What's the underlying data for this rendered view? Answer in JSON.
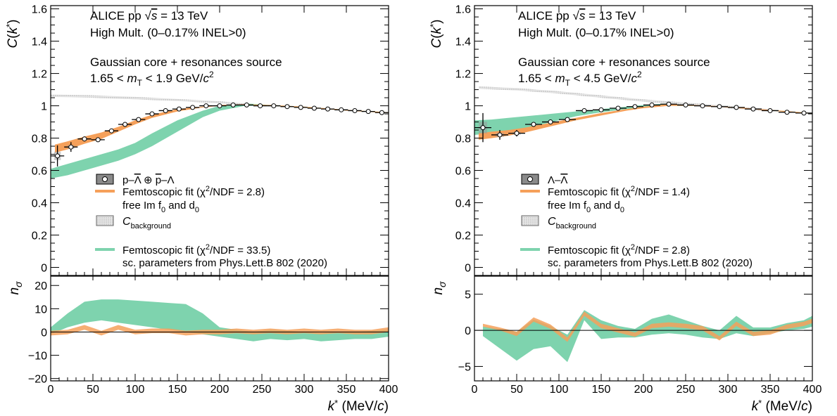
{
  "chart_data": [
    {
      "type": "line",
      "panel": "left",
      "title_lines": [
        "ALICE pp √s = 13 TeV",
        "High Mult. (0–0.17% INEL>0)",
        "Gaussian core + resonances source",
        "1.65 < mT < 1.9 GeV/c2"
      ],
      "xlabel": "k* (MeV/c)",
      "ylabel": "C(k*)",
      "ratio_ylabel": "nσ",
      "xlim": [
        0,
        400
      ],
      "ylim": [
        -0.05,
        1.62
      ],
      "ratio_ylim": [
        -21,
        24
      ],
      "xticks": [
        0,
        50,
        100,
        150,
        200,
        250,
        300,
        350,
        400
      ],
      "yticks": [
        0,
        0.2,
        0.4,
        0.6,
        0.8,
        1,
        1.2,
        1.4,
        1.6
      ],
      "ratio_yticks": [
        -20,
        -10,
        0,
        10,
        20
      ],
      "legend_placement": "center-left",
      "legend": {
        "data": "p–Λ̄ ⊕ p̄–Λ",
        "fit1_line1": "Femtoscopic fit (χ²/NDF = 2.8)",
        "fit1_line2": "free Im f0 and d0",
        "background": "Cbackground",
        "fit2_line1": "Femtoscopic fit (χ²/NDF = 33.5)",
        "fit2_line2": "sc. parameters from Phys.Lett.B 802 (2020)"
      },
      "data_points": {
        "x": [
          8,
          24,
          40,
          56,
          72,
          88,
          104,
          120,
          136,
          152,
          168,
          184,
          200,
          216,
          232,
          248,
          264,
          280,
          296,
          312,
          328,
          344,
          360,
          376,
          392
        ],
        "y": [
          0.69,
          0.745,
          0.795,
          0.79,
          0.845,
          0.885,
          0.915,
          0.95,
          0.97,
          0.98,
          0.99,
          1.0,
          1.0,
          1.005,
          1.005,
          1.0,
          1.0,
          0.995,
          0.99,
          0.985,
          0.98,
          0.975,
          0.97,
          0.965,
          0.958
        ],
        "yerr": [
          0.065,
          0.03,
          0.015,
          0.012,
          0.01,
          0.01,
          0.01,
          0.008,
          0.008,
          0.007,
          0.007,
          0.006,
          0.006,
          0.006,
          0.006,
          0.006,
          0.006,
          0.006,
          0.006,
          0.006,
          0.006,
          0.006,
          0.006,
          0.006,
          0.006
        ]
      },
      "fit1_band": {
        "x": [
          5,
          20,
          40,
          60,
          80,
          100,
          120,
          150,
          180,
          200,
          230,
          260,
          300,
          350,
          400
        ],
        "lower": [
          0.71,
          0.73,
          0.765,
          0.795,
          0.84,
          0.885,
          0.925,
          0.965,
          0.99,
          1.0,
          1.005,
          1.0,
          0.99,
          0.97,
          0.955
        ],
        "upper": [
          0.76,
          0.78,
          0.81,
          0.835,
          0.87,
          0.91,
          0.945,
          0.98,
          0.995,
          1.005,
          1.01,
          1.005,
          0.995,
          0.975,
          0.96
        ]
      },
      "fit2_band": {
        "x": [
          0,
          20,
          40,
          60,
          80,
          100,
          120,
          150,
          180,
          200,
          230,
          260,
          300,
          350,
          400
        ],
        "lower": [
          0.55,
          0.57,
          0.6,
          0.63,
          0.66,
          0.7,
          0.75,
          0.84,
          0.93,
          0.97,
          1.0,
          1.0,
          0.99,
          0.97,
          0.955
        ],
        "upper": [
          0.61,
          0.64,
          0.67,
          0.7,
          0.73,
          0.77,
          0.83,
          0.91,
          0.97,
          1.0,
          1.015,
          1.005,
          0.995,
          0.975,
          0.96
        ]
      },
      "background_band": {
        "x": [
          0,
          50,
          100,
          150,
          200,
          230
        ],
        "lower": [
          1.055,
          1.05,
          1.04,
          1.03,
          1.015,
          1.005
        ],
        "upper": [
          1.07,
          1.065,
          1.055,
          1.042,
          1.028,
          1.015
        ]
      },
      "ratio_fit1": {
        "x": [
          0,
          20,
          40,
          60,
          80,
          100,
          120,
          140,
          160,
          180,
          200,
          220,
          240,
          260,
          280,
          300,
          320,
          340,
          360,
          380,
          400
        ],
        "lower": [
          -1.5,
          -1,
          1,
          -1.5,
          1,
          -1,
          -0.5,
          -0.5,
          -1.5,
          -1,
          -1,
          -0.5,
          -1,
          -0.5,
          -1,
          -0.5,
          -1,
          -0.5,
          -1,
          -1,
          0
        ],
        "upper": [
          0.5,
          1,
          3,
          0.5,
          3,
          1,
          1.5,
          1.5,
          0.5,
          1,
          1,
          1.5,
          1,
          1.5,
          1,
          1.5,
          1,
          1.5,
          1,
          1,
          2
        ]
      },
      "ratio_fit2": {
        "x": [
          0,
          20,
          40,
          60,
          80,
          100,
          120,
          140,
          160,
          180,
          200,
          220,
          240,
          260,
          280,
          300,
          320,
          340,
          360,
          380,
          400
        ],
        "lower": [
          -1,
          2,
          4,
          5,
          4,
          3,
          2,
          1,
          0,
          -1,
          -2,
          -3,
          -4,
          -3,
          -3.5,
          -3,
          -4,
          -3.5,
          -3,
          -3,
          -2
        ],
        "upper": [
          2,
          8,
          13,
          14,
          14,
          13.5,
          13,
          12.5,
          12,
          8,
          2,
          1,
          0,
          1,
          0.5,
          0,
          -0.5,
          0,
          0,
          0.5,
          1
        ]
      }
    },
    {
      "type": "line",
      "panel": "right",
      "title_lines": [
        "ALICE pp √s = 13 TeV",
        "High Mult. (0–0.17% INEL>0)",
        "Gaussian core + resonances source",
        "1.65 < mT < 4.5 GeV/c2"
      ],
      "xlabel": "k* (MeV/c)",
      "ylabel": "C(k*)",
      "ratio_ylabel": "nσ",
      "xlim": [
        0,
        400
      ],
      "ylim": [
        -0.05,
        1.62
      ],
      "ratio_ylim": [
        -7,
        7.5
      ],
      "xticks": [
        0,
        50,
        100,
        150,
        200,
        250,
        300,
        350,
        400
      ],
      "yticks": [
        0,
        0.2,
        0.4,
        0.6,
        0.8,
        1,
        1.2,
        1.4,
        1.6
      ],
      "ratio_yticks": [
        -5,
        0,
        5
      ],
      "legend_placement": "center-left",
      "legend": {
        "data": "Λ–Λ̄",
        "fit1_line1": "Femtoscopic fit (χ²/NDF = 1.4)",
        "fit1_line2": "free Im f0 and d0",
        "background": "Cbackground",
        "fit2_line1": "Femtoscopic fit (χ²/NDF = 2.8)",
        "fit2_line2": "sc. parameters from Phys.Lett.B 802 (2020)"
      },
      "data_points": {
        "x": [
          10,
          30,
          50,
          70,
          90,
          110,
          130,
          150,
          170,
          190,
          210,
          230,
          250,
          270,
          290,
          310,
          330,
          350,
          370,
          390
        ],
        "y": [
          0.865,
          0.82,
          0.83,
          0.885,
          0.9,
          0.915,
          0.97,
          0.975,
          0.985,
          0.995,
          1.005,
          1.01,
          1.005,
          1.0,
          0.995,
          0.99,
          0.98,
          0.97,
          0.96,
          0.955
        ],
        "yerr": [
          0.09,
          0.03,
          0.02,
          0.015,
          0.012,
          0.01,
          0.01,
          0.008,
          0.008,
          0.008,
          0.007,
          0.007,
          0.007,
          0.007,
          0.007,
          0.007,
          0.007,
          0.007,
          0.007,
          0.007
        ]
      },
      "fit1_band": {
        "x": [
          5,
          20,
          40,
          60,
          80,
          100,
          120,
          150,
          180,
          200,
          230,
          260,
          300,
          350,
          400
        ],
        "lower": [
          0.79,
          0.8,
          0.815,
          0.835,
          0.86,
          0.885,
          0.91,
          0.94,
          0.97,
          0.985,
          1.0,
          1.0,
          0.99,
          0.97,
          0.95
        ],
        "upper": [
          0.83,
          0.84,
          0.85,
          0.865,
          0.885,
          0.905,
          0.925,
          0.955,
          0.98,
          0.995,
          1.01,
          1.005,
          0.995,
          0.975,
          0.955
        ]
      },
      "fit2_band": {
        "x": [
          0,
          20,
          40,
          60,
          80,
          100,
          120,
          150,
          180,
          200,
          230,
          260,
          300,
          350,
          400
        ],
        "lower": [
          0.82,
          0.83,
          0.84,
          0.86,
          0.885,
          0.91,
          0.935,
          0.96,
          0.98,
          0.99,
          1.0,
          1.0,
          0.99,
          0.97,
          0.95
        ],
        "upper": [
          0.91,
          0.915,
          0.925,
          0.935,
          0.945,
          0.955,
          0.965,
          0.98,
          0.995,
          1.005,
          1.015,
          1.01,
          1.0,
          0.975,
          0.955
        ]
      },
      "background_band": {
        "x": [
          5,
          50,
          100,
          150,
          200,
          250,
          300,
          350
        ],
        "lower": [
          1.105,
          1.095,
          1.075,
          1.05,
          1.025,
          1.005,
          0.985,
          0.965
        ],
        "upper": [
          1.12,
          1.11,
          1.09,
          1.065,
          1.04,
          1.02,
          1.0,
          0.98
        ]
      },
      "ratio_fit1": {
        "x": [
          10,
          30,
          50,
          70,
          90,
          110,
          130,
          150,
          170,
          190,
          210,
          230,
          250,
          270,
          290,
          310,
          330,
          350,
          370,
          390,
          400
        ],
        "lower": [
          0.5,
          0,
          -0.8,
          1.2,
          0.2,
          -1.6,
          2.0,
          0.3,
          -0.3,
          -0.9,
          0.3,
          0.5,
          0.3,
          0,
          -1.4,
          0.6,
          -0.8,
          -0.6,
          0.2,
          0.6,
          1.0
        ],
        "upper": [
          0.9,
          0.4,
          -0.2,
          1.8,
          0.8,
          -1.0,
          2.6,
          0.9,
          0.3,
          -0.3,
          0.9,
          1.1,
          0.9,
          0.6,
          -0.8,
          1.2,
          -0.2,
          0,
          0.8,
          1.2,
          1.6
        ]
      },
      "ratio_fit2": {
        "x": [
          10,
          30,
          50,
          70,
          90,
          110,
          130,
          150,
          170,
          190,
          210,
          230,
          250,
          270,
          290,
          310,
          330,
          350,
          370,
          390,
          400
        ],
        "lower": [
          -0.8,
          -2.5,
          -4.2,
          -2.6,
          -2.2,
          -4.4,
          1.4,
          -1.2,
          -1.0,
          -1.0,
          -0.6,
          -0.4,
          -0.6,
          -1.0,
          -1.2,
          -0.4,
          -0.8,
          -0.4,
          0,
          0.2,
          0.5
        ],
        "upper": [
          0.5,
          0.2,
          -0.2,
          1.5,
          0.6,
          -0.6,
          2.8,
          1.4,
          0.6,
          0.2,
          1.6,
          2.2,
          1.4,
          0.6,
          0,
          2.0,
          0.4,
          0.4,
          1.0,
          1.4,
          2.0
        ]
      }
    }
  ],
  "colors": {
    "fit1": "#f5a05a",
    "fit2": "#7ed3ae",
    "background": "#c8c8c8",
    "data_marker": "#000000"
  }
}
